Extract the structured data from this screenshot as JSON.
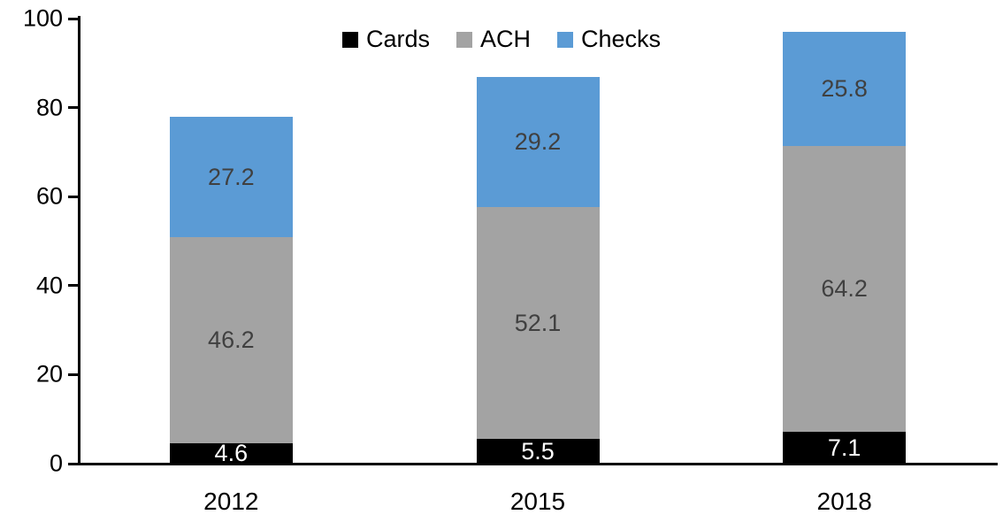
{
  "chart_data": {
    "type": "bar",
    "stacked": true,
    "title": "",
    "categories": [
      "2012",
      "2015",
      "2018"
    ],
    "series": [
      {
        "name": "Cards",
        "color": "#000000",
        "label_color": "#ffffff",
        "values": [
          4.6,
          5.5,
          7.1
        ]
      },
      {
        "name": "ACH",
        "color": "#A3A3A3",
        "label_color": "#404040",
        "values": [
          46.2,
          52.1,
          64.2
        ]
      },
      {
        "name": "Checks",
        "color": "#5B9BD5",
        "label_color": "#404040",
        "values": [
          27.2,
          29.2,
          25.8
        ]
      }
    ],
    "totals": [
      78.0,
      86.8,
      97.1
    ],
    "xlabel": "",
    "ylabel": "",
    "ylim": [
      0,
      100
    ],
    "yticks": [
      0,
      20,
      40,
      60,
      80,
      100
    ],
    "grid": false,
    "legend_position": "top",
    "data_labels": true,
    "axis_color": "#000000"
  }
}
